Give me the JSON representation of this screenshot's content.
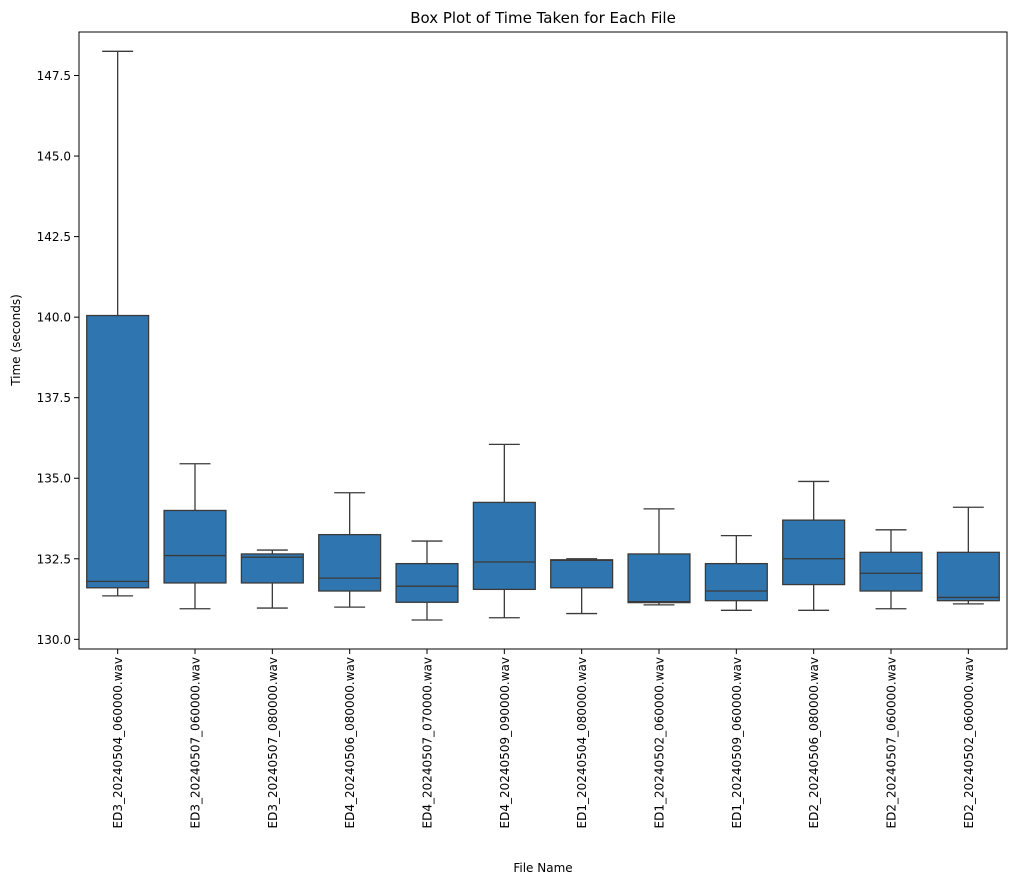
{
  "chart_data": {
    "type": "box",
    "title": "Box Plot of Time Taken for Each File",
    "xlabel": "File Name",
    "ylabel": "Time (seconds)",
    "ylim": [
      129.7,
      148.85
    ],
    "yticks": [
      130.0,
      132.5,
      135.0,
      137.5,
      140.0,
      142.5,
      145.0,
      147.5
    ],
    "ytick_labels": [
      "130.0",
      "132.5",
      "135.0",
      "137.5",
      "140.0",
      "142.5",
      "145.0",
      "147.5"
    ],
    "grid": false,
    "box_color": "#2f75b0",
    "line_color": "#3a3a3a",
    "categories": [
      "ED3_20240504_060000.wav",
      "ED3_20240507_060000.wav",
      "ED3_20240507_080000.wav",
      "ED4_20240506_080000.wav",
      "ED4_20240507_070000.wav",
      "ED4_20240509_090000.wav",
      "ED1_20240504_080000.wav",
      "ED1_20240502_060000.wav",
      "ED1_20240509_060000.wav",
      "ED2_20240506_080000.wav",
      "ED2_20240507_060000.wav",
      "ED2_20240502_060000.wav"
    ],
    "boxes": [
      {
        "whislo": 131.35,
        "q1": 131.6,
        "med": 131.8,
        "q3": 140.05,
        "whishi": 148.25
      },
      {
        "whislo": 130.95,
        "q1": 131.75,
        "med": 132.6,
        "q3": 134.0,
        "whishi": 135.45
      },
      {
        "whislo": 130.97,
        "q1": 131.75,
        "med": 132.55,
        "q3": 132.65,
        "whishi": 132.77
      },
      {
        "whislo": 131.0,
        "q1": 131.5,
        "med": 131.9,
        "q3": 133.25,
        "whishi": 134.55
      },
      {
        "whislo": 130.6,
        "q1": 131.15,
        "med": 131.65,
        "q3": 132.35,
        "whishi": 133.05
      },
      {
        "whislo": 130.67,
        "q1": 131.55,
        "med": 132.4,
        "q3": 134.25,
        "whishi": 136.05
      },
      {
        "whislo": 130.8,
        "q1": 131.6,
        "med": 132.45,
        "q3": 132.47,
        "whishi": 132.5
      },
      {
        "whislo": 131.07,
        "q1": 131.14,
        "med": 131.17,
        "q3": 132.65,
        "whishi": 134.05
      },
      {
        "whislo": 130.9,
        "q1": 131.2,
        "med": 131.5,
        "q3": 132.35,
        "whishi": 133.22
      },
      {
        "whislo": 130.9,
        "q1": 131.7,
        "med": 132.5,
        "q3": 133.7,
        "whishi": 134.9
      },
      {
        "whislo": 130.95,
        "q1": 131.5,
        "med": 132.05,
        "q3": 132.7,
        "whishi": 133.4
      },
      {
        "whislo": 131.1,
        "q1": 131.2,
        "med": 131.3,
        "q3": 132.7,
        "whishi": 134.1
      }
    ]
  }
}
